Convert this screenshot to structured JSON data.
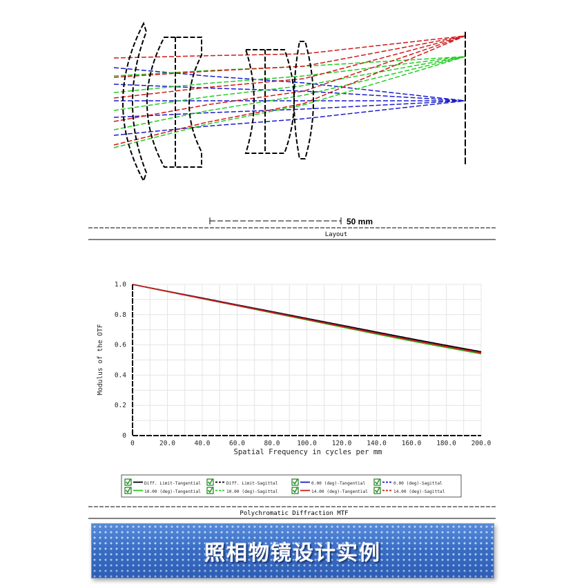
{
  "layout_caption": "Layout",
  "scale_bar_label": "50 mm",
  "mtf_caption": "Polychromatic Diffraction MTF",
  "banner_title": "照相物镜设计实例",
  "chart_data": {
    "type": "line",
    "title": "Polychromatic Diffraction MTF",
    "xlabel": "Spatial Frequency in cycles per mm",
    "ylabel": "Modulus of the OTF",
    "xlim": [
      0,
      200
    ],
    "ylim": [
      0,
      1.0
    ],
    "x_ticks": [
      "0",
      "20.0",
      "40.0",
      "60.0",
      "80.0",
      "100.0",
      "120.0",
      "140.0",
      "160.0",
      "180.0",
      "200.0"
    ],
    "y_ticks": [
      "0",
      "0.2",
      "0.4",
      "0.6",
      "0.8",
      "1.0"
    ],
    "grid": true,
    "legend_placement": "bottom",
    "x": [
      0,
      20,
      40,
      60,
      80,
      100,
      120,
      140,
      160,
      180,
      200
    ],
    "series": [
      {
        "name": "Diff. Limit-Tangential",
        "color": "#000000",
        "dash": false,
        "values": [
          1.0,
          0.955,
          0.91,
          0.865,
          0.82,
          0.775,
          0.73,
          0.685,
          0.64,
          0.597,
          0.555
        ]
      },
      {
        "name": "Diff. Limit-Sagittal",
        "color": "#000000",
        "dash": true,
        "values": [
          1.0,
          0.955,
          0.91,
          0.865,
          0.82,
          0.775,
          0.73,
          0.685,
          0.64,
          0.597,
          0.555
        ]
      },
      {
        "name": "0.00 (deg)-Tangential",
        "color": "#1a1acc",
        "dash": false,
        "values": [
          1.0,
          0.954,
          0.908,
          0.862,
          0.816,
          0.77,
          0.724,
          0.678,
          0.633,
          0.59,
          0.548
        ]
      },
      {
        "name": "0.00 (deg)-Sagittal",
        "color": "#1a1acc",
        "dash": true,
        "values": [
          1.0,
          0.954,
          0.908,
          0.862,
          0.816,
          0.77,
          0.724,
          0.678,
          0.633,
          0.59,
          0.548
        ]
      },
      {
        "name": "10.00 (deg)-Tangential",
        "color": "#22cc22",
        "dash": false,
        "values": [
          1.0,
          0.953,
          0.906,
          0.859,
          0.812,
          0.765,
          0.718,
          0.671,
          0.625,
          0.582,
          0.54
        ]
      },
      {
        "name": "10.00 (deg)-Sagittal",
        "color": "#22cc22",
        "dash": true,
        "values": [
          1.0,
          0.954,
          0.907,
          0.86,
          0.814,
          0.767,
          0.72,
          0.674,
          0.628,
          0.585,
          0.543
        ]
      },
      {
        "name": "14.00 (deg)-Tangential",
        "color": "#d01818",
        "dash": false,
        "values": [
          1.0,
          0.953,
          0.906,
          0.86,
          0.814,
          0.768,
          0.722,
          0.676,
          0.631,
          0.588,
          0.546
        ]
      },
      {
        "name": "14.00 (deg)-Sagittal",
        "color": "#d01818",
        "dash": true,
        "values": [
          1.0,
          0.954,
          0.908,
          0.862,
          0.816,
          0.77,
          0.724,
          0.678,
          0.633,
          0.59,
          0.548
        ]
      }
    ]
  }
}
